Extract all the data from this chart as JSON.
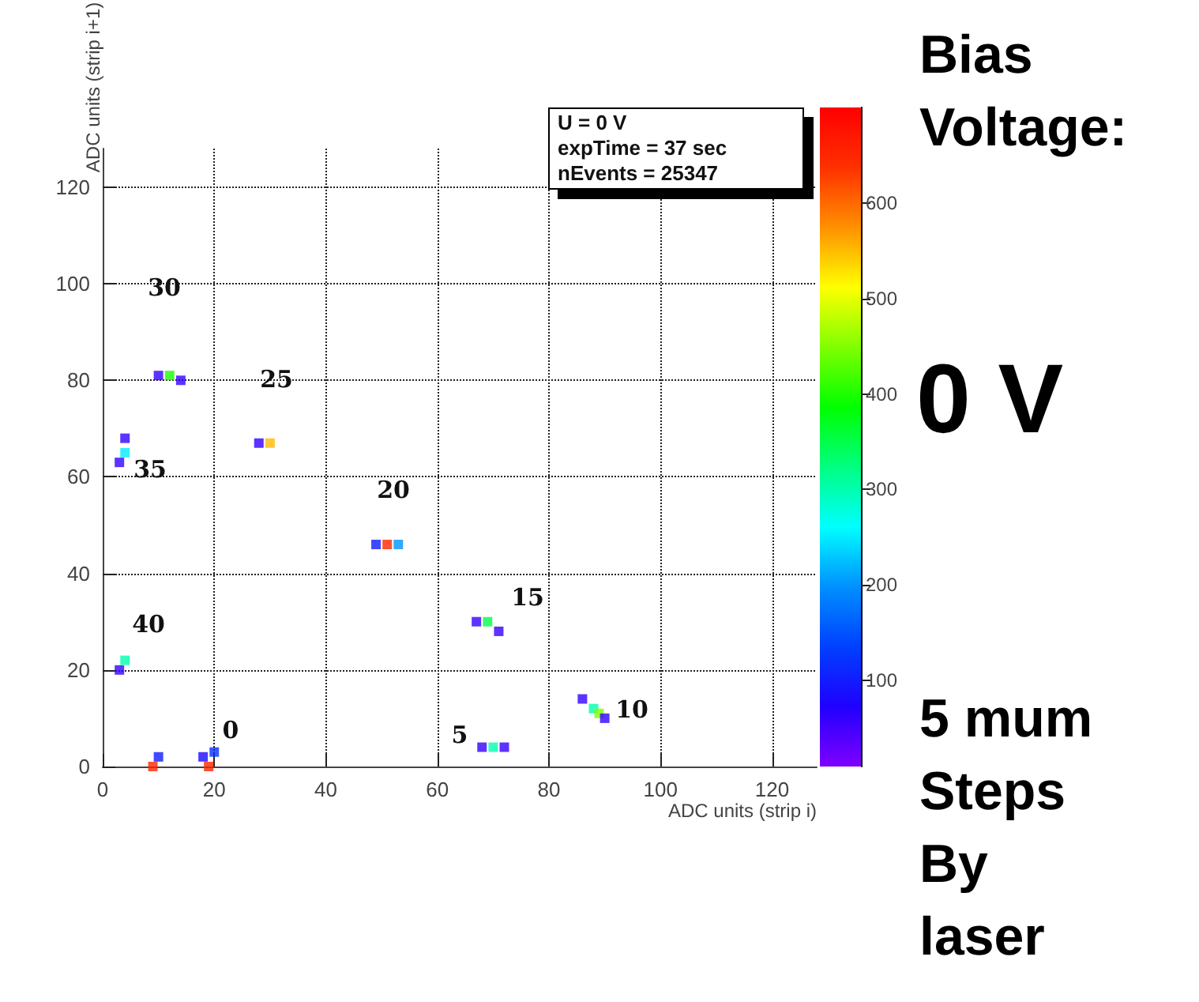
{
  "chart_data": {
    "type": "scatter",
    "title": "Bias Voltage:",
    "subtitle": "0 V",
    "xlabel": "ADC units (strip i)",
    "ylabel": "ADC units (strip i+1)",
    "x": [
      18,
      20,
      19,
      9,
      10,
      68,
      70,
      72,
      86,
      88,
      89,
      90,
      67,
      69,
      71,
      49,
      51,
      53,
      28,
      30,
      10,
      12,
      14,
      3,
      4,
      4,
      3,
      4
    ],
    "values": [
      2,
      3,
      0,
      0,
      2,
      4,
      4,
      4,
      14,
      12,
      11,
      10,
      30,
      30,
      28,
      46,
      46,
      46,
      67,
      67,
      81,
      81,
      80,
      63,
      65,
      68,
      20,
      22
    ],
    "cvalues": [
      80,
      120,
      650,
      650,
      100,
      60,
      300,
      60,
      60,
      300,
      450,
      60,
      60,
      350,
      60,
      100,
      650,
      200,
      60,
      550,
      60,
      400,
      60,
      60,
      250,
      60,
      60,
      300
    ],
    "marker": "square",
    "xlim": [
      0,
      128
    ],
    "ylim": [
      0,
      128
    ],
    "xticks": [
      0,
      20,
      40,
      60,
      80,
      100,
      120
    ],
    "yticks": [
      0,
      20,
      40,
      60,
      80,
      100,
      120
    ],
    "clim": [
      10,
      700
    ],
    "cticks": [
      100,
      200,
      300,
      400,
      500,
      600
    ],
    "grid": true,
    "annotations": [
      "U = 0 V",
      "expTime = 37 sec",
      "nEvents = 25347",
      "0",
      "5",
      "10",
      "15",
      "20",
      "25",
      "30",
      "35",
      "40",
      "5 mum Steps By laser"
    ]
  }
}
